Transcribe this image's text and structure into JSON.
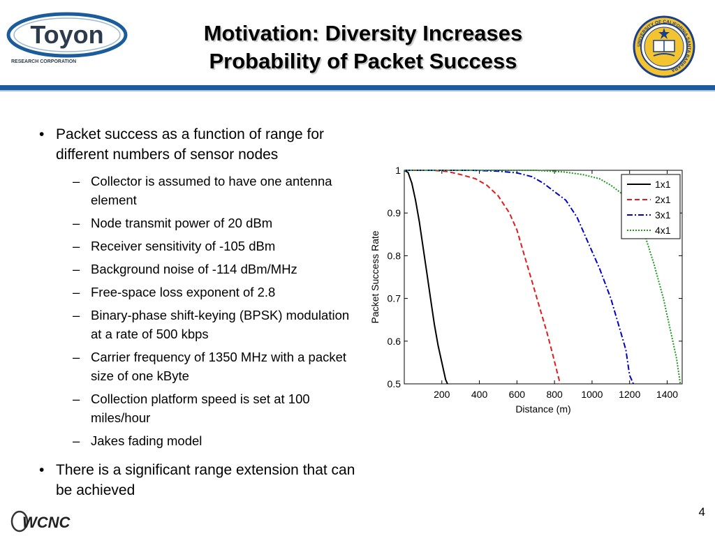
{
  "header": {
    "title_line1": "Motivation: Diversity Increases",
    "title_line2": "Probability of Packet Success",
    "logo_left_text": "Toyon",
    "logo_left_subtext": "RESEARCH CORPORATION",
    "logo_right_text": "UNIVERSITY OF CALIFORNIA SANTA BARBARA"
  },
  "content": {
    "bullet1": "Packet success as a function of range for different numbers of sensor nodes",
    "sub_bullets": [
      "Collector is assumed to have one antenna element",
      "Node transmit power of 20 dBm",
      "Receiver sensitivity of -105 dBm",
      "Background noise of -114 dBm/MHz",
      "Free-space loss exponent of 2.8",
      "Binary-phase shift-keying (BPSK) modulation at a rate of 500 kbps",
      "Carrier frequency of 1350 MHz with a packet size of one kByte",
      "Collection platform speed is set at 100 miles/hour",
      "Jakes fading model"
    ],
    "bullet2": "There is a significant range extension that can be achieved"
  },
  "chart_data": {
    "type": "line",
    "title": "",
    "xlabel": "Distance (m)",
    "ylabel": "Packet Success Rate",
    "xlim": [
      0,
      1480
    ],
    "ylim": [
      0.5,
      1
    ],
    "xticks": [
      200,
      400,
      600,
      800,
      1000,
      1200,
      1400
    ],
    "yticks": [
      0.5,
      0.6,
      0.7,
      0.8,
      0.9,
      1
    ],
    "ytick_labels": [
      "0.5",
      "0.6",
      "0.7",
      "0.8",
      "0.9",
      "1"
    ],
    "legend_position": "top-right",
    "series": [
      {
        "name": "1x1",
        "color": "#000000",
        "dash": "solid",
        "x": [
          0,
          20,
          40,
          60,
          80,
          100,
          120,
          140,
          160,
          180,
          200,
          220,
          230
        ],
        "y": [
          1.0,
          0.995,
          0.97,
          0.93,
          0.88,
          0.82,
          0.76,
          0.7,
          0.64,
          0.59,
          0.55,
          0.51,
          0.5
        ]
      },
      {
        "name": "2x1",
        "color": "#e31a1c",
        "dash": "dashed",
        "x": [
          0,
          150,
          230,
          300,
          380,
          440,
          500,
          560,
          600,
          640,
          680,
          720,
          760,
          790,
          810,
          830
        ],
        "y": [
          1.0,
          1.0,
          0.997,
          0.99,
          0.98,
          0.965,
          0.94,
          0.9,
          0.86,
          0.8,
          0.74,
          0.68,
          0.62,
          0.57,
          0.535,
          0.5
        ]
      },
      {
        "name": "3x1",
        "color": "#0000cc",
        "dash": "dashdot",
        "x": [
          0,
          350,
          500,
          600,
          680,
          740,
          800,
          860,
          920,
          980,
          1040,
          1100,
          1140,
          1180,
          1200,
          1220
        ],
        "y": [
          1.0,
          1.0,
          0.998,
          0.994,
          0.985,
          0.97,
          0.95,
          0.93,
          0.89,
          0.83,
          0.77,
          0.7,
          0.64,
          0.58,
          0.52,
          0.5
        ]
      },
      {
        "name": "4x1",
        "color": "#1a9a1a",
        "dash": "dotted",
        "x": [
          0,
          700,
          850,
          950,
          1040,
          1100,
          1160,
          1220,
          1280,
          1330,
          1380,
          1420,
          1450,
          1470
        ],
        "y": [
          1.0,
          1.0,
          0.996,
          0.99,
          0.98,
          0.965,
          0.945,
          0.91,
          0.85,
          0.78,
          0.7,
          0.62,
          0.56,
          0.5
        ]
      }
    ]
  },
  "footer": {
    "page_number": "4",
    "logo_text": "WCNC"
  }
}
